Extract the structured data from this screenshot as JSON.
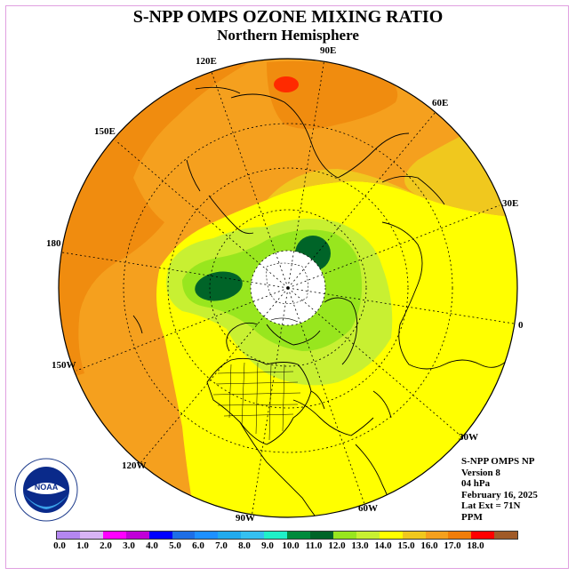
{
  "title": "S-NPP OMPS OZONE MIXING RATIO",
  "subtitle": "Northern Hemisphere",
  "longitude_labels": [
    "90E",
    "60E",
    "30E",
    "0",
    "30W",
    "60W",
    "90W",
    "120W",
    "150W",
    "180",
    "150E",
    "120E"
  ],
  "info": {
    "line1": "S-NPP OMPS NP",
    "line2": "Version 8",
    "line3": "04 hPa",
    "line4": "February 16, 2025",
    "line5": "Lat Ext = 71N",
    "line6": "PPM"
  },
  "logo_text": "NOAA",
  "colorbar": {
    "colors": [
      "#b487f0",
      "#d8b4f5",
      "#ff00ff",
      "#c000d8",
      "#0000ff",
      "#1e6ee6",
      "#1e90ff",
      "#22aaee",
      "#35c0f0",
      "#20f0c8",
      "#008a3c",
      "#006428",
      "#98e61e",
      "#c8f032",
      "#ffff00",
      "#f0c81e",
      "#f5a01e",
      "#f07d0a",
      "#ff0000",
      "#a05a28"
    ],
    "tick_labels": [
      "0.0",
      "1.0",
      "2.0",
      "3.0",
      "4.0",
      "5.0",
      "6.0",
      "7.0",
      "8.0",
      "9.0",
      "10.0",
      "11.0",
      "12.0",
      "13.0",
      "14.0",
      "15.0",
      "16.0",
      "17.0",
      "18.0"
    ]
  }
}
